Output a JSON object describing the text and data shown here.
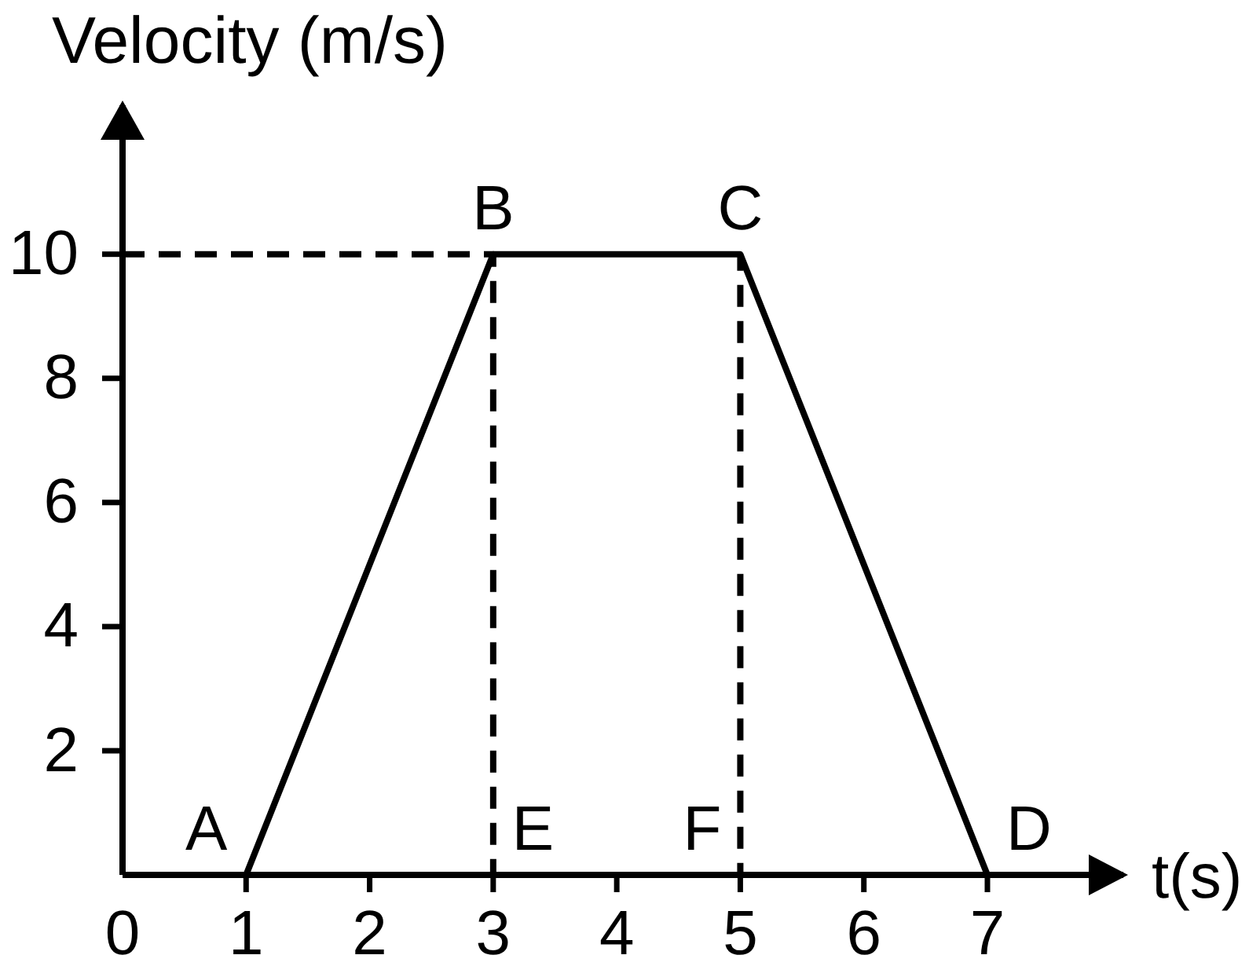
{
  "chart_data": {
    "type": "line",
    "xlabel": "t(s)",
    "ylabel": "Velocity (m/s)",
    "xlim": [
      0,
      8.1
    ],
    "ylim": [
      0,
      12.4
    ],
    "xticks": [
      0,
      1,
      2,
      3,
      4,
      5,
      6,
      7
    ],
    "yticks": [
      2,
      4,
      6,
      8,
      10
    ],
    "series": [
      {
        "color": "#000000",
        "x": [
          1,
          3,
          5,
          7
        ],
        "values": [
          0,
          10,
          10,
          0
        ]
      },
      {
        "color": "#000000",
        "x": [
          0,
          3,
          3,
          5,
          5
        ],
        "values": [
          10,
          10,
          0,
          0,
          10
        ],
        "line_style": "dashed"
      }
    ],
    "annotations": [
      {
        "text": "A",
        "x": 1,
        "y": 0
      },
      {
        "text": "B",
        "x": 3,
        "y": 10
      },
      {
        "text": "C",
        "x": 5,
        "y": 10
      },
      {
        "text": "D",
        "x": 7,
        "y": 0
      },
      {
        "text": "E",
        "x": 3,
        "y": 0
      },
      {
        "text": "F",
        "x": 5,
        "y": 0
      }
    ]
  }
}
